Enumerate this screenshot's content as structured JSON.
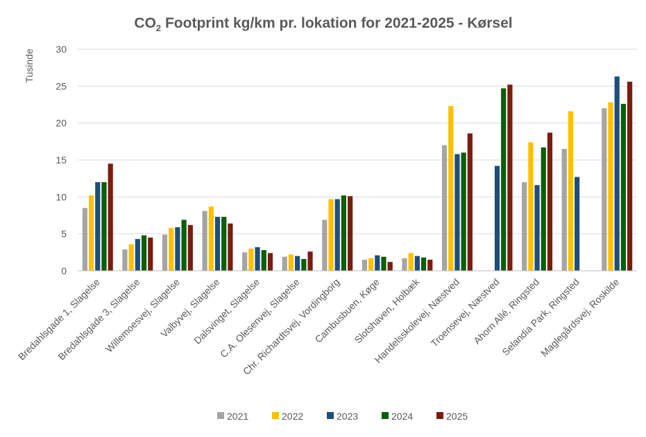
{
  "chart_data": {
    "type": "bar",
    "title": {
      "prefix": "CO",
      "subscript": "2",
      "rest": " Footprint kg/km pr. lokation for 2021-2025 - Kørsel"
    },
    "ylabel": "Tusinde",
    "ylim": [
      0,
      30
    ],
    "yticks": [
      0,
      5,
      10,
      15,
      20,
      25,
      30
    ],
    "grid": true,
    "legend_position": "bottom",
    "categories": [
      "Bredahlsgade 1, Slagelse",
      "Bredahlsgade 3, Slagelse",
      "Willemoesvej, Slagelse",
      "Valbyvej, Slagelse",
      "Dalsvinget, Slagelse",
      "C.A. Olesenvej, Slagelse",
      "Chr. Richardtsvej, Vordingborg",
      "Cambusbuen, Køge",
      "Slotshaven, Holbæk",
      "Handelsskolevej, Næstved",
      "Troensevej, Næstved",
      "Ahorn Allé, Ringsted",
      "Selandia Park, Ringsted",
      "Maglegårdsvej, Roskilde"
    ],
    "series": [
      {
        "name": "2021",
        "color": "#a5a5a5",
        "values": [
          8.5,
          2.9,
          4.9,
          8.1,
          2.5,
          1.9,
          6.9,
          1.5,
          1.7,
          17.0,
          null,
          12.0,
          16.5,
          22.0
        ]
      },
      {
        "name": "2022",
        "color": "#ffc000",
        "values": [
          10.2,
          3.6,
          5.8,
          8.7,
          3.0,
          2.2,
          9.7,
          1.7,
          2.4,
          22.3,
          null,
          17.4,
          21.6,
          22.8
        ]
      },
      {
        "name": "2023",
        "color": "#1f4e79",
        "values": [
          12.0,
          4.3,
          5.9,
          7.3,
          3.2,
          2.0,
          9.7,
          2.1,
          2.0,
          15.8,
          14.2,
          11.6,
          12.7,
          26.3
        ]
      },
      {
        "name": "2024",
        "color": "#0b5e0b",
        "values": [
          12.0,
          4.8,
          6.9,
          7.3,
          2.8,
          1.6,
          10.2,
          1.9,
          1.8,
          16.0,
          24.7,
          16.7,
          null,
          22.6
        ]
      },
      {
        "name": "2025",
        "color": "#7a1c10",
        "values": [
          14.5,
          4.5,
          6.2,
          6.4,
          2.4,
          2.6,
          10.1,
          1.2,
          1.5,
          18.6,
          25.2,
          18.7,
          null,
          25.6
        ]
      }
    ]
  }
}
